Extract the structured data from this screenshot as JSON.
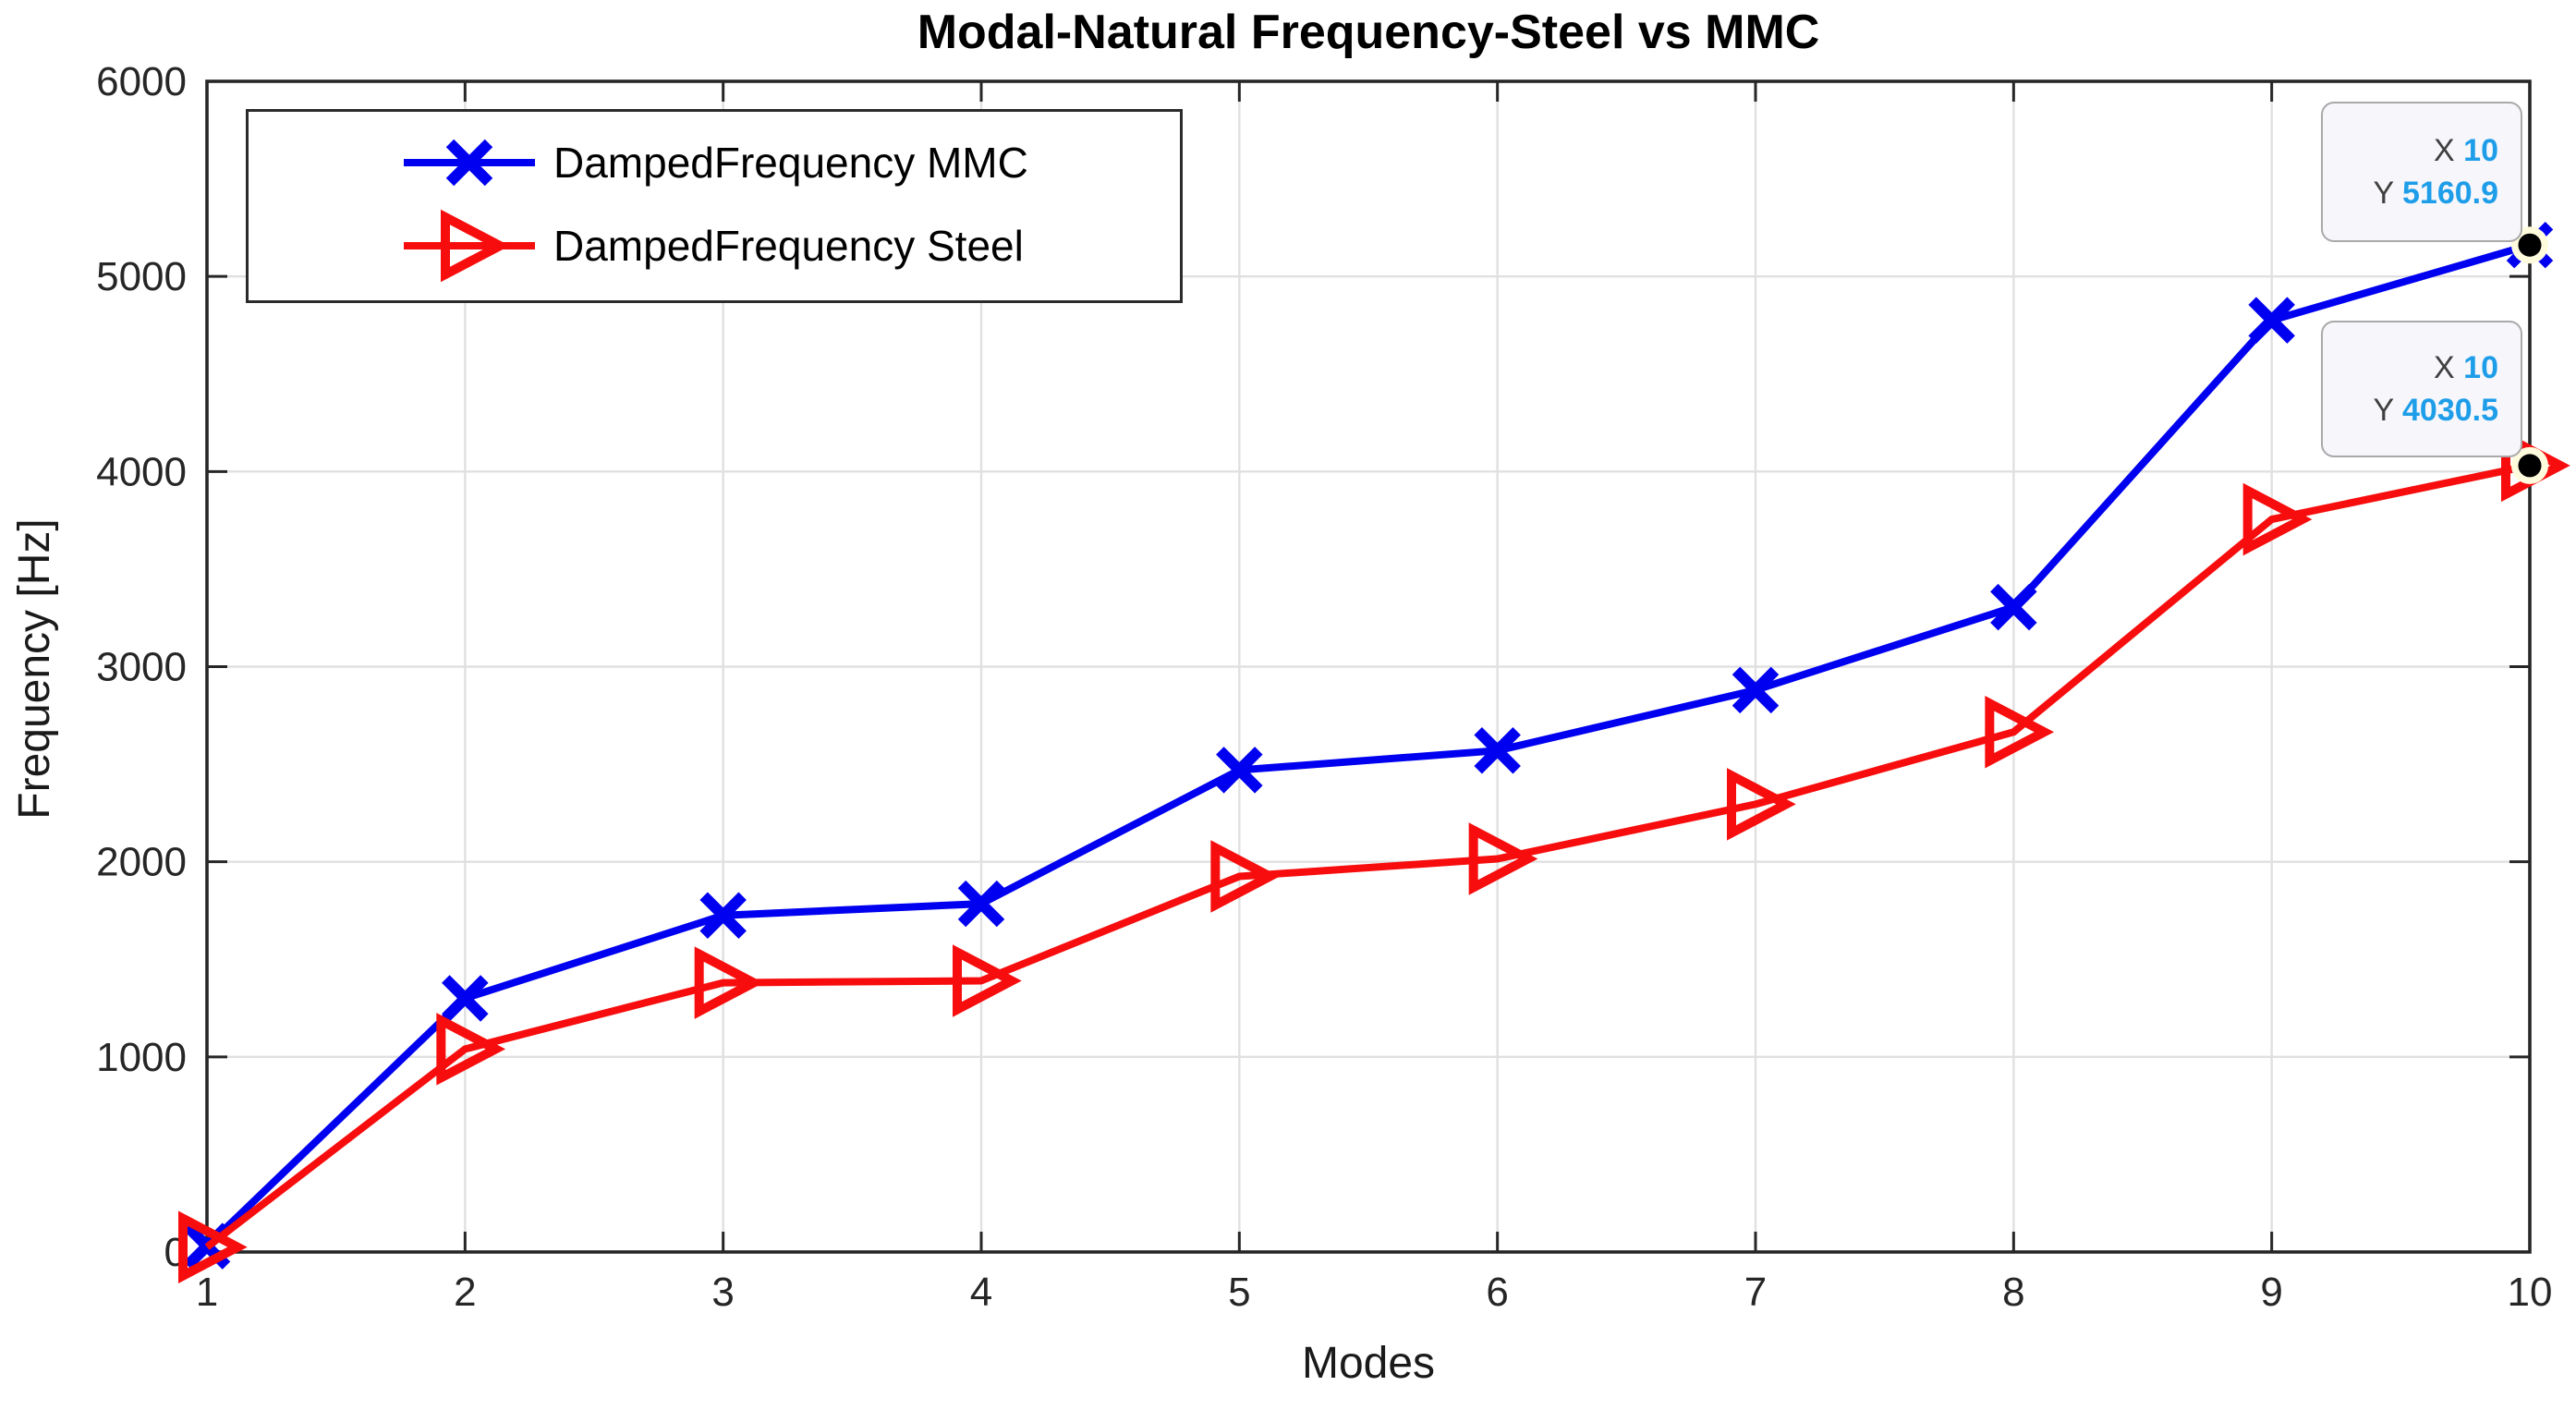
{
  "chart_data": {
    "type": "line",
    "title": "Modal-Natural Frequency-Steel vs MMC",
    "xlabel": "Modes",
    "ylabel": "Frequency [Hz]",
    "x": [
      1,
      2,
      3,
      4,
      5,
      6,
      7,
      8,
      9,
      10
    ],
    "xlim": [
      1,
      10
    ],
    "ylim": [
      0,
      6000
    ],
    "xticks": [
      1,
      2,
      3,
      4,
      5,
      6,
      7,
      8,
      9,
      10
    ],
    "yticks": [
      0,
      1000,
      2000,
      3000,
      4000,
      5000,
      6000
    ],
    "grid": true,
    "legend_position": "northwest",
    "series": [
      {
        "name": "DampedFrequency MMC",
        "color": "#0000f0",
        "marker": "x-cross",
        "values": [
          30,
          1300,
          1725,
          1785,
          2470,
          2570,
          2880,
          3305,
          4775,
          5160.9
        ]
      },
      {
        "name": "DampedFrequency Steel",
        "color": "#f70d0d",
        "marker": "triangle-right",
        "values": [
          25,
          1040,
          1380,
          1390,
          1925,
          2015,
          2295,
          2665,
          3755,
          4030.5
        ]
      }
    ],
    "datatips": [
      {
        "x_label": "X",
        "x_value": "10",
        "y_label": "Y",
        "y_value": "5160.9",
        "series_index": 0,
        "point_x": 10,
        "point_y": 5160.9
      },
      {
        "x_label": "X",
        "x_value": "10",
        "y_label": "Y",
        "y_value": "4030.5",
        "series_index": 1,
        "point_x": 10,
        "point_y": 4030.5
      }
    ]
  },
  "colors": {
    "grid": "#e0e0e0",
    "axis": "#262626",
    "tick_label": "#262626",
    "datatip_value": "#1e9de8",
    "datatip_label": "#3f3f3f",
    "datatip_bg": "#f6f6fb",
    "anchor_dot": "#000000",
    "anchor_halo": "#fffbdd"
  }
}
